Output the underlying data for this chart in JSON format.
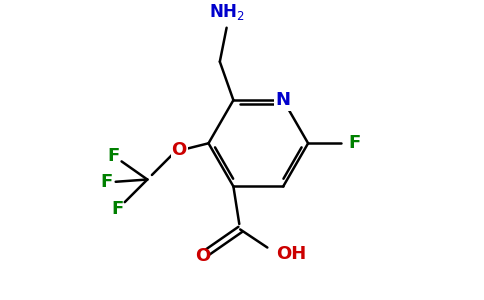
{
  "background_color": "#ffffff",
  "bond_color": "#000000",
  "N_color": "#0000cc",
  "O_color": "#cc0000",
  "F_color": "#008000",
  "NH2_color": "#0000cc",
  "bond_width": 1.8,
  "figsize": [
    4.84,
    3.0
  ],
  "dpi": 100,
  "xlim": [
    0,
    9.68
  ],
  "ylim": [
    0,
    6.0
  ]
}
